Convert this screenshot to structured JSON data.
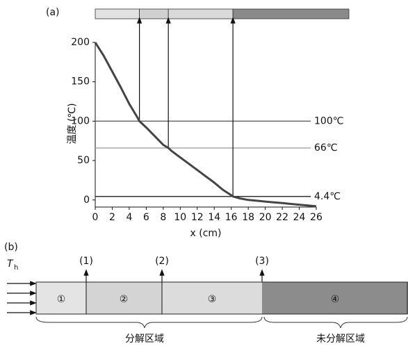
{
  "chart_data": {
    "type": "line",
    "panel_label": "(a)",
    "y_label": "温度 (℃)",
    "x_label": "x (cm)",
    "x": [
      0,
      1,
      2,
      3,
      4,
      5,
      5.2,
      6,
      7,
      8,
      8.6,
      9,
      10,
      11,
      12,
      13,
      14,
      15,
      16,
      16.2,
      17,
      18,
      19,
      20,
      21,
      22,
      23,
      24,
      25,
      26
    ],
    "values": [
      200,
      183,
      163,
      143,
      122,
      104,
      100,
      92,
      81,
      70,
      66,
      62,
      54,
      46,
      38,
      30,
      22,
      13,
      6,
      4.4,
      2,
      0,
      -1,
      -2,
      -3,
      -4,
      -5,
      -6,
      -7,
      -8
    ],
    "color": "#444444",
    "xlim": [
      0,
      26
    ],
    "ylim": [
      -9,
      200
    ],
    "xticks": [
      0,
      2,
      4,
      6,
      8,
      10,
      12,
      14,
      16,
      18,
      20,
      22,
      24,
      26
    ],
    "yticks": [
      0,
      50,
      100,
      150,
      200
    ],
    "reference_lines": [
      {
        "value": 100,
        "label": "100℃",
        "x": 5.2,
        "color": "#666666"
      },
      {
        "value": 66,
        "label": "66℃",
        "x": 8.6,
        "color": "#aaaaaa"
      },
      {
        "value": 4.4,
        "label": "4.4℃",
        "x": 16.2,
        "color": "#333333"
      }
    ]
  },
  "panel_b": {
    "label": "(b)",
    "heat_label": "T",
    "heat_sub": "h",
    "markers": [
      "(1)",
      "(2)",
      "(3)"
    ],
    "regions": [
      "①",
      "②",
      "③",
      "④"
    ],
    "braces": [
      "分解区域",
      "未分解区域"
    ]
  }
}
